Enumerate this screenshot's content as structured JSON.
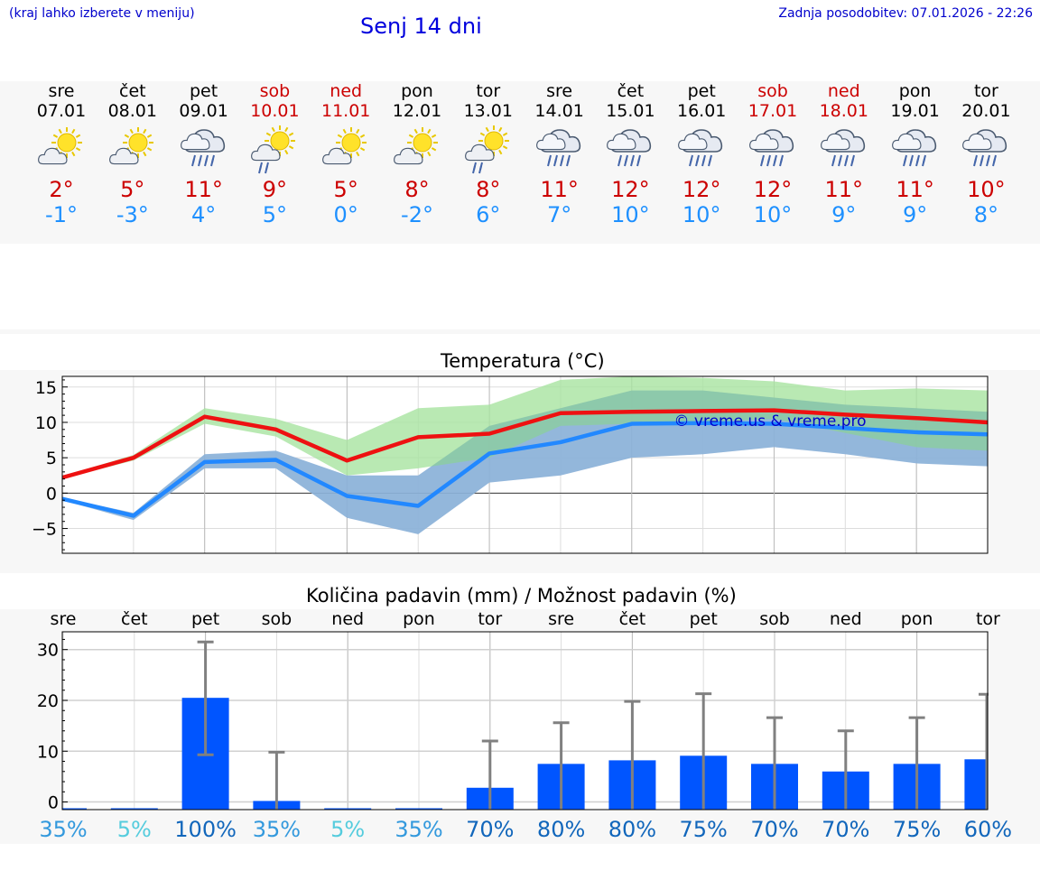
{
  "header": {
    "menu_hint": "(kraj lahko izberete v meniju)",
    "title": "Senj 14 dni",
    "updated": "Zadnja posodobitev: 07.01.2026 - 22:26"
  },
  "days": [
    {
      "name": "sre",
      "date": "07.01",
      "icon": "sun-cloud-icon",
      "tmax": "2°",
      "tmin": "-1°",
      "weekend": false
    },
    {
      "name": "čet",
      "date": "08.01",
      "icon": "sun-cloud-icon",
      "tmax": "5°",
      "tmin": "-3°",
      "weekend": false
    },
    {
      "name": "pet",
      "date": "09.01",
      "icon": "rain-cloud-icon",
      "tmax": "11°",
      "tmin": "4°",
      "weekend": false
    },
    {
      "name": "sob",
      "date": "10.01",
      "icon": "sun-cloud-rain-icon",
      "tmax": "9°",
      "tmin": "5°",
      "weekend": true
    },
    {
      "name": "ned",
      "date": "11.01",
      "icon": "sun-cloud-icon",
      "tmax": "5°",
      "tmin": "0°",
      "weekend": true
    },
    {
      "name": "pon",
      "date": "12.01",
      "icon": "sun-cloud-icon",
      "tmax": "8°",
      "tmin": "-2°",
      "weekend": false
    },
    {
      "name": "tor",
      "date": "13.01",
      "icon": "sun-cloud-rain-icon",
      "tmax": "8°",
      "tmin": "6°",
      "weekend": false
    },
    {
      "name": "sre",
      "date": "14.01",
      "icon": "rain-cloud-icon",
      "tmax": "11°",
      "tmin": "7°",
      "weekend": false
    },
    {
      "name": "čet",
      "date": "15.01",
      "icon": "rain-cloud-icon",
      "tmax": "12°",
      "tmin": "10°",
      "weekend": false
    },
    {
      "name": "pet",
      "date": "16.01",
      "icon": "rain-cloud-icon",
      "tmax": "12°",
      "tmin": "10°",
      "weekend": false
    },
    {
      "name": "sob",
      "date": "17.01",
      "icon": "rain-cloud-icon",
      "tmax": "12°",
      "tmin": "10°",
      "weekend": true
    },
    {
      "name": "ned",
      "date": "18.01",
      "icon": "rain-cloud-icon",
      "tmax": "11°",
      "tmin": "9°",
      "weekend": true
    },
    {
      "name": "pon",
      "date": "19.01",
      "icon": "rain-cloud-icon",
      "tmax": "11°",
      "tmin": "9°",
      "weekend": false
    },
    {
      "name": "tor",
      "date": "20.01",
      "icon": "rain-cloud-icon",
      "tmax": "10°",
      "tmin": "8°",
      "weekend": false
    }
  ],
  "colors": {
    "max_line": "#ee1111",
    "min_line": "#2288ff",
    "max_band": "#a8e4a0",
    "min_band": "#a8c0f0",
    "overlap_band": "#7cc4a4",
    "bar": "#0055ff",
    "error_bar": "#808080"
  },
  "chart_data": [
    {
      "type": "line",
      "title": "Temperatura (°C)",
      "watermark": "© vreme.us & vreme.pro",
      "x_days": [
        0,
        1,
        2,
        3,
        4,
        5,
        6,
        7,
        8,
        9,
        10,
        11,
        12,
        13
      ],
      "ylim": [
        -8.5,
        16.5
      ],
      "yticks": [
        -5,
        0,
        5,
        10,
        15
      ],
      "ytick_labels": [
        "−5",
        "0",
        "5",
        "10",
        "15"
      ],
      "series": [
        {
          "name": "max",
          "values": [
            2.2,
            5.0,
            10.8,
            9.0,
            4.6,
            7.9,
            8.4,
            11.3,
            11.5,
            11.6,
            11.7,
            11.1,
            10.6,
            10.0
          ],
          "band_low": [
            2.0,
            4.6,
            9.8,
            8.0,
            2.5,
            3.5,
            5.0,
            9.5,
            9.8,
            10.0,
            10.5,
            8.5,
            6.5,
            6.0
          ],
          "band_high": [
            2.4,
            5.4,
            12.0,
            10.5,
            7.5,
            12.0,
            12.5,
            16.0,
            16.5,
            16.3,
            15.8,
            14.5,
            14.8,
            14.5
          ]
        },
        {
          "name": "min",
          "values": [
            -0.8,
            -3.2,
            4.4,
            4.7,
            -0.4,
            -1.8,
            5.6,
            7.2,
            9.8,
            9.9,
            9.8,
            9.2,
            8.6,
            8.3
          ],
          "band_low": [
            -1.0,
            -3.8,
            3.5,
            3.5,
            -3.5,
            -5.8,
            1.5,
            2.5,
            5.0,
            5.5,
            6.5,
            5.5,
            4.2,
            3.8
          ],
          "band_high": [
            -0.6,
            -2.8,
            5.5,
            6.0,
            2.5,
            2.5,
            9.5,
            12.0,
            14.5,
            14.5,
            13.5,
            12.5,
            12.0,
            11.5
          ]
        }
      ]
    },
    {
      "type": "bar",
      "title": "Količina padavin (mm) / Možnost padavin (%)",
      "categories": [
        "sre",
        "čet",
        "pet",
        "sob",
        "ned",
        "pon",
        "tor",
        "sre",
        "čet",
        "pet",
        "sob",
        "ned",
        "pon",
        "tor"
      ],
      "values": [
        0,
        0,
        20.5,
        0.2,
        0,
        0,
        2.8,
        7.5,
        8.2,
        9.1,
        7.5,
        6.0,
        7.5,
        8.4
      ],
      "error_high": [
        0,
        0,
        31.5,
        9.8,
        0,
        0,
        12.0,
        15.6,
        19.8,
        21.3,
        16.6,
        14.0,
        16.6,
        21.2
      ],
      "error_low": [
        0,
        0,
        9.3,
        0,
        0,
        0,
        0,
        0,
        0,
        0,
        0,
        0,
        0,
        0
      ],
      "ylim": [
        -1.5,
        33.5
      ],
      "yticks": [
        0,
        10,
        20,
        30
      ],
      "ytick_labels": [
        "0",
        "10",
        "20",
        "30"
      ],
      "probabilities": [
        "35%",
        "5%",
        "100%",
        "35%",
        "5%",
        "35%",
        "70%",
        "80%",
        "80%",
        "75%",
        "70%",
        "70%",
        "75%",
        "60%"
      ],
      "probability_colors": [
        "#3399dd",
        "#55ccdd",
        "#1166bb",
        "#3399dd",
        "#55ccdd",
        "#3399dd",
        "#1166bb",
        "#1166bb",
        "#1166bb",
        "#1166bb",
        "#1166bb",
        "#1166bb",
        "#1166bb",
        "#1166bb"
      ]
    }
  ]
}
